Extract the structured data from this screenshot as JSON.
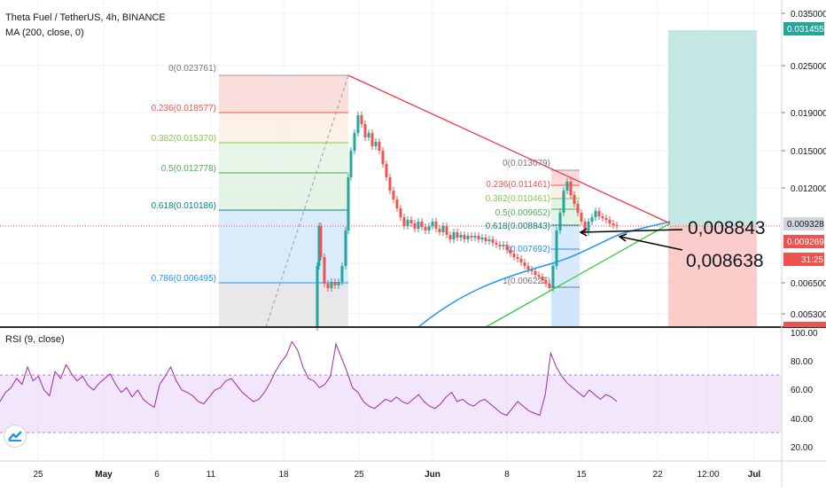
{
  "header": {
    "symbol_line": "Theta Fuel / TetherUS, 4h, BINANCE",
    "ma_line": "MA (200, close, 0)",
    "rsi_line": "RSI (9, close)"
  },
  "price_axis": {
    "ticks": [
      "0.035000",
      "0.031455",
      "0.025000",
      "0.019000",
      "0.015000",
      "0.012000",
      "0.009328",
      "0.009269",
      "0.006500",
      "0.005300"
    ],
    "labels_badge": {
      "target": "0.031455",
      "last": "0.009328",
      "ma": "0.009269",
      "countdown": "31:25"
    }
  },
  "rsi_axis": {
    "ticks": [
      "100.00",
      "80.00",
      "60.00",
      "40.00",
      "20.00"
    ]
  },
  "time_axis": {
    "ticks": [
      "25",
      "May",
      "6",
      "11",
      "18",
      "25",
      "Jun",
      "8",
      "15",
      "22",
      "12:00",
      "Jul"
    ]
  },
  "fib_left": {
    "levels": [
      "0(0.023761)",
      "0.236(0.018577)",
      "0.382(0.015370)",
      "0.5(0.012778)",
      "0.618(0.010186)",
      "0.786(0.006495)"
    ]
  },
  "fib_right": {
    "levels": [
      "0(0.013079)",
      "0.236(0.011461)",
      "0.382(0.010461)",
      "0.5(0.009652)",
      "0.618(0.008843)",
      "(0.007692)",
      "1(0.006225)"
    ]
  },
  "annotations": {
    "upper": "0,008843",
    "lower": "0,008638"
  },
  "colors": {
    "up": "#26a69a",
    "down": "#ef5350",
    "ma": "#2196f3",
    "rsi": "#9c27b0",
    "trend_red": "#f23645",
    "trend_green": "#2ecc40"
  }
}
